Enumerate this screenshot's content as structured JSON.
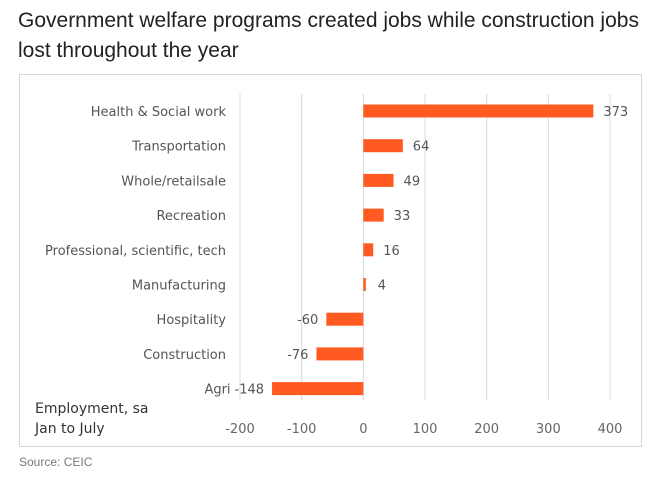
{
  "header": {
    "title": "Government welfare programs created jobs while construction jobs lost throughout the year"
  },
  "footer": {
    "source": "Source: CEIC"
  },
  "chart_data": {
    "type": "bar",
    "orientation": "horizontal",
    "title": "Government welfare programs created jobs while construction jobs lost throughout the year",
    "annotation": [
      "Employment, sa",
      "Jan to July"
    ],
    "categories": [
      "Health & Social work",
      "Transportation",
      "Whole/retailsale",
      "Recreation",
      "Professional, scientific, tech",
      "Manufacturing",
      "Hospitality",
      "Construction",
      "Agri"
    ],
    "values": [
      373,
      64,
      49,
      33,
      16,
      4,
      -60,
      -76,
      -148
    ],
    "data_labels": [
      "373",
      "64",
      "49",
      "33",
      "16",
      "4",
      "-60",
      "-76",
      "-148"
    ],
    "xlim": [
      -200,
      400
    ],
    "xticks": [
      -200,
      -100,
      0,
      100,
      200,
      300,
      400
    ],
    "xtick_labels": [
      "-200",
      "-100",
      "0",
      "100",
      "200",
      "300",
      "400"
    ],
    "xlabel": "",
    "ylabel": "",
    "grid": "vertical",
    "legend": "none",
    "bar_color": "#FF5A1F"
  }
}
